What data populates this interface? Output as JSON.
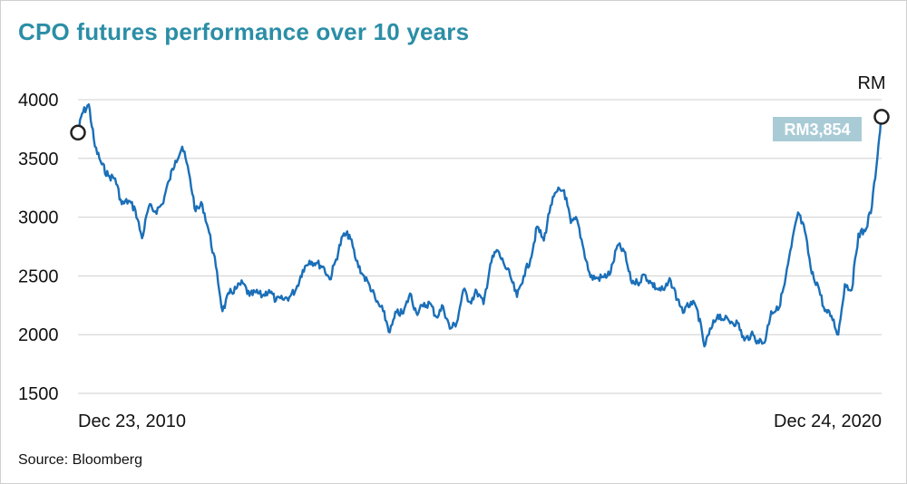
{
  "title": "CPO futures performance over 10 years",
  "source": "Source: Bloomberg",
  "colors": {
    "title": "#2b8ea6",
    "line": "#1a6fb8",
    "badge": "#a9cbd6",
    "grid": "#cfcfcf"
  },
  "chart_data": {
    "type": "line",
    "title": "CPO futures performance over 10 years",
    "unit_label": "RM",
    "xlabel": "",
    "ylabel": "",
    "x_start_label": "Dec 23, 2010",
    "x_end_label": "Dec 24, 2020",
    "ylim": [
      1500,
      4000
    ],
    "yticks": [
      1500,
      2000,
      2500,
      3000,
      3500,
      4000
    ],
    "grid": true,
    "end_annotation": "RM3,854",
    "series": [
      {
        "dates": [
          "2010-12-23",
          "2011-01-10",
          "2011-02-10",
          "2011-03-10",
          "2011-04-10",
          "2011-05-10",
          "2011-06-10",
          "2011-07-10",
          "2011-08-10",
          "2011-09-10",
          "2011-10-10",
          "2011-11-10",
          "2011-12-10",
          "2012-01-10",
          "2012-02-10",
          "2012-03-10",
          "2012-04-10",
          "2012-05-10",
          "2012-06-10",
          "2012-07-10",
          "2012-08-10",
          "2012-09-10",
          "2012-10-10",
          "2012-11-10",
          "2012-12-10",
          "2013-01-10",
          "2013-02-10",
          "2013-03-10",
          "2013-04-10",
          "2013-05-10",
          "2013-06-10",
          "2013-07-10",
          "2013-08-10",
          "2013-09-10",
          "2013-10-10",
          "2013-11-10",
          "2013-12-10",
          "2014-01-10",
          "2014-02-10",
          "2014-03-10",
          "2014-04-10",
          "2014-05-10",
          "2014-06-10",
          "2014-07-10",
          "2014-08-10",
          "2014-09-10",
          "2014-10-10",
          "2014-11-10",
          "2014-12-10",
          "2015-01-10",
          "2015-02-10",
          "2015-03-10",
          "2015-04-10",
          "2015-05-10",
          "2015-06-10",
          "2015-07-10",
          "2015-08-10",
          "2015-09-10",
          "2015-10-10",
          "2015-11-10",
          "2015-12-10",
          "2016-01-10",
          "2016-02-10",
          "2016-03-10",
          "2016-04-10",
          "2016-05-10",
          "2016-06-10",
          "2016-07-10",
          "2016-08-10",
          "2016-09-10",
          "2016-10-10",
          "2016-11-10",
          "2016-12-10",
          "2017-01-10",
          "2017-02-10",
          "2017-03-10",
          "2017-04-10",
          "2017-05-10",
          "2017-06-10",
          "2017-07-10",
          "2017-08-10",
          "2017-09-10",
          "2017-10-10",
          "2017-11-10",
          "2017-12-10",
          "2018-01-10",
          "2018-02-10",
          "2018-03-10",
          "2018-04-10",
          "2018-05-10",
          "2018-06-10",
          "2018-07-10",
          "2018-08-10",
          "2018-09-10",
          "2018-10-10",
          "2018-11-10",
          "2018-12-10",
          "2019-01-10",
          "2019-02-10",
          "2019-03-10",
          "2019-04-10",
          "2019-05-10",
          "2019-06-10",
          "2019-07-10",
          "2019-08-10",
          "2019-09-10",
          "2019-10-10",
          "2019-11-10",
          "2019-12-10",
          "2020-01-10",
          "2020-02-10",
          "2020-03-10",
          "2020-04-10",
          "2020-05-10",
          "2020-06-10",
          "2020-07-10",
          "2020-08-10",
          "2020-09-10",
          "2020-10-10",
          "2020-11-10",
          "2020-12-10",
          "2020-12-24"
        ],
        "values": [
          3720,
          3880,
          3960,
          3600,
          3450,
          3350,
          3330,
          3110,
          3140,
          3060,
          2820,
          3090,
          3050,
          3110,
          3310,
          3480,
          3600,
          3380,
          3050,
          3110,
          2870,
          2580,
          2200,
          2350,
          2390,
          2440,
          2330,
          2360,
          2330,
          2380,
          2290,
          2300,
          2320,
          2390,
          2550,
          2630,
          2610,
          2580,
          2470,
          2640,
          2840,
          2850,
          2630,
          2510,
          2420,
          2280,
          2200,
          2020,
          2190,
          2180,
          2350,
          2190,
          2240,
          2270,
          2150,
          2240,
          2050,
          2100,
          2380,
          2280,
          2370,
          2260,
          2600,
          2720,
          2610,
          2500,
          2320,
          2500,
          2640,
          2920,
          2800,
          3100,
          3220,
          3230,
          2950,
          2980,
          2720,
          2490,
          2480,
          2490,
          2530,
          2760,
          2710,
          2460,
          2440,
          2510,
          2440,
          2390,
          2380,
          2460,
          2300,
          2190,
          2280,
          2200,
          1900,
          2050,
          2170,
          2130,
          2110,
          2100,
          1950,
          2000,
          1950,
          1930,
          2200,
          2210,
          2430,
          2750,
          3040,
          2880,
          2520,
          2420,
          2200,
          2160,
          2000,
          2430,
          2380,
          2860,
          2880,
          3090,
          3620,
          3854
        ]
      }
    ]
  }
}
